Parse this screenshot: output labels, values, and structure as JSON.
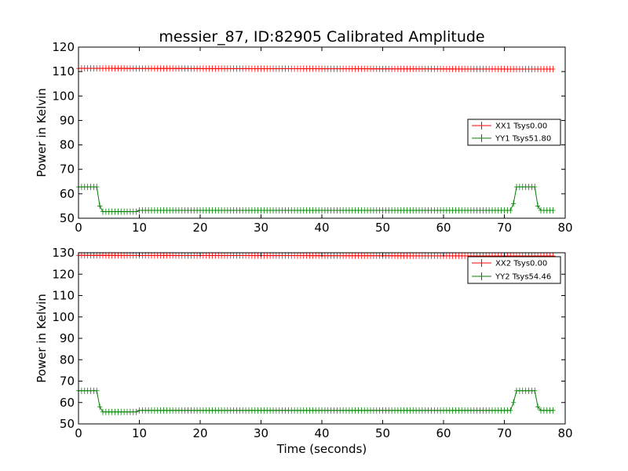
{
  "figure_title": "messier_87, ID:82905 Calibrated Amplitude",
  "colors": {
    "xx": "#ff0000",
    "yy": "#008000"
  },
  "chart_data": [
    {
      "type": "line",
      "title": "messier_87, ID:82905 Calibrated Amplitude",
      "xlabel": "",
      "ylabel": "Power in Kelvin",
      "xlim": [
        0,
        80
      ],
      "ylim": [
        50,
        120
      ],
      "xticks": [
        0,
        10,
        20,
        30,
        40,
        50,
        60,
        70,
        80
      ],
      "yticks": [
        50,
        60,
        70,
        80,
        90,
        100,
        110,
        120
      ],
      "grid": false,
      "legend_position": "right",
      "series": [
        {
          "name": "XX1 Tsys0.00",
          "color": "#ff0000",
          "marker": "+",
          "x_start": 0,
          "x_end": 78,
          "x_step": 0.5,
          "points": [
            [
              0,
              111.3
            ],
            [
              78,
              111.0
            ]
          ]
        },
        {
          "name": "YY1 Tsys51.80",
          "color": "#008000",
          "marker": "+",
          "x_start": 0,
          "x_end": 78,
          "x_step": 0.5,
          "points": [
            [
              0,
              62.8
            ],
            [
              3,
              62.8
            ],
            [
              3.5,
              55
            ],
            [
              4,
              52.7
            ],
            [
              9.5,
              52.7
            ],
            [
              10,
              53.2
            ],
            [
              71,
              53.2
            ],
            [
              71.5,
              56
            ],
            [
              72,
              62.8
            ],
            [
              75,
              62.8
            ],
            [
              75.5,
              55
            ],
            [
              76,
              53.2
            ],
            [
              78,
              53.2
            ]
          ]
        }
      ]
    },
    {
      "type": "line",
      "title": "",
      "xlabel": "Time (seconds)",
      "ylabel": "Power in Kelvin",
      "xlim": [
        0,
        80
      ],
      "ylim": [
        50,
        130
      ],
      "xticks": [
        0,
        10,
        20,
        30,
        40,
        50,
        60,
        70,
        80
      ],
      "yticks": [
        50,
        60,
        70,
        80,
        90,
        100,
        110,
        120,
        130
      ],
      "grid": false,
      "legend_position": "top-right",
      "series": [
        {
          "name": "XX2 Tsys0.00",
          "color": "#ff0000",
          "marker": "+",
          "x_start": 0,
          "x_end": 78,
          "x_step": 0.5,
          "points": [
            [
              0,
              128.8
            ],
            [
              78,
              128.5
            ]
          ]
        },
        {
          "name": "YY2 Tsys54.46",
          "color": "#008000",
          "marker": "+",
          "x_start": 0,
          "x_end": 78,
          "x_step": 0.5,
          "points": [
            [
              0,
              65.5
            ],
            [
              3,
              65.5
            ],
            [
              3.5,
              58
            ],
            [
              4,
              55.6
            ],
            [
              9.5,
              55.6
            ],
            [
              10,
              56.3
            ],
            [
              71,
              56.3
            ],
            [
              71.5,
              60
            ],
            [
              72,
              65.5
            ],
            [
              75,
              65.5
            ],
            [
              75.5,
              58
            ],
            [
              76,
              56.3
            ],
            [
              78,
              56.3
            ]
          ]
        }
      ]
    }
  ]
}
